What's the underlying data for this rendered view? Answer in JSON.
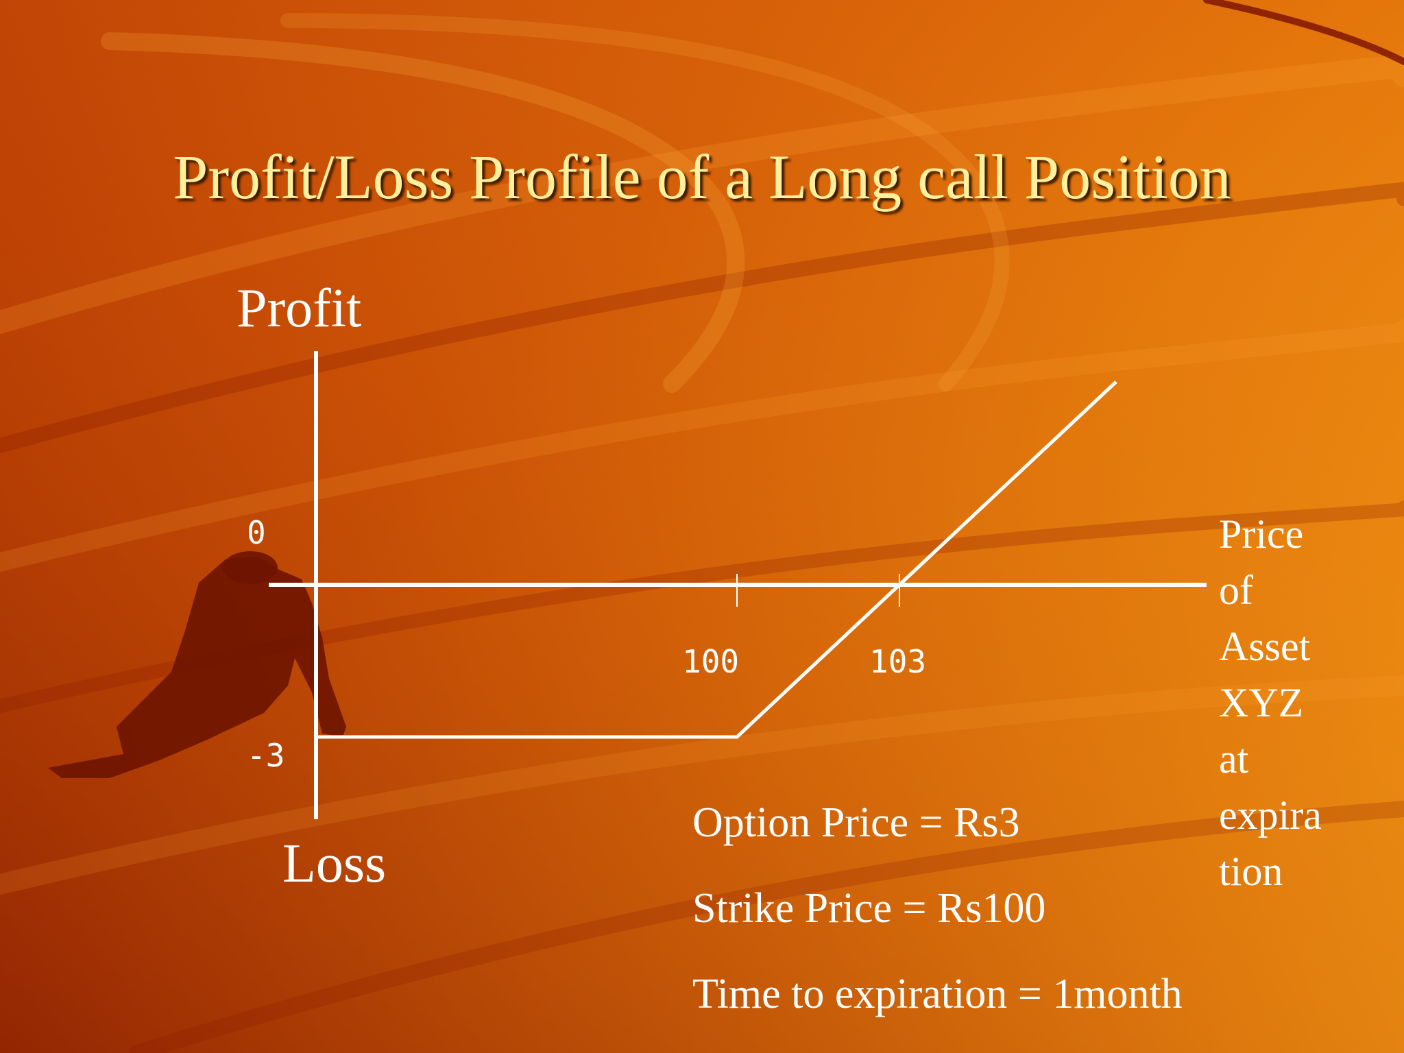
{
  "slide": {
    "title": "Profit/Loss Profile of a Long call Position",
    "y_top_label": "Profit",
    "y_bottom_label": "Loss",
    "x_axis_title_lines": [
      "Price",
      "of",
      "Asset",
      "XYZ",
      "at",
      "expira",
      "tion"
    ],
    "info_lines": [
      "Option Price = Rs3",
      "Strike Price = Rs100",
      "Time to expiration = 1month"
    ]
  },
  "chart_data": {
    "type": "line",
    "title": "Profit/Loss Profile of a Long call Position",
    "xlabel": "Price of Asset XYZ at expiration",
    "ylabel": "Profit / Loss",
    "x_ticks": [
      100,
      103
    ],
    "y_ticks": [
      0,
      -3
    ],
    "x_tick_labels": [
      "100",
      "103"
    ],
    "y_tick_labels": [
      "0",
      "-3"
    ],
    "series": [
      {
        "x": [
          0,
          100,
          103,
          107
        ],
        "y": [
          -3,
          -3,
          0,
          4
        ]
      }
    ],
    "grid": false,
    "colors": {
      "line": "#ffffff",
      "title": "#fff0a0"
    }
  }
}
